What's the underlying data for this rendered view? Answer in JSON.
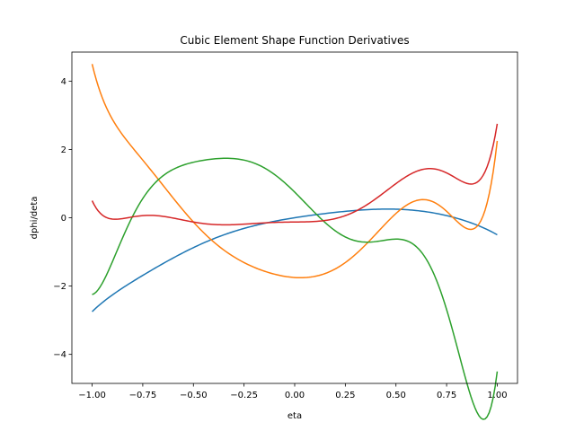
{
  "chart_data": {
    "type": "line",
    "title": "Cubic Element Shape Function Derivatives",
    "xlabel": "eta",
    "ylabel": "dphi/deta",
    "xlim": [
      -1.1,
      1.1
    ],
    "ylim": [
      -4.85,
      4.85
    ],
    "grid": false,
    "xticks": [
      -1.0,
      -0.75,
      -0.5,
      -0.25,
      0.0,
      0.25,
      0.5,
      0.75,
      1.0
    ],
    "xtick_labels": [
      "−1.00",
      "−0.75",
      "−0.50",
      "−0.25",
      "0.00",
      "0.25",
      "0.50",
      "0.75",
      "1.00"
    ],
    "yticks": [
      -4,
      -2,
      0,
      2,
      4
    ],
    "ytick_labels": [
      "−4",
      "−2",
      "0",
      "2",
      "4"
    ],
    "x": [
      -1.0,
      -0.75,
      -0.5,
      -0.25,
      0.0,
      0.25,
      0.5,
      0.75,
      1.0
    ],
    "series": [
      {
        "color": "#1f77b4",
        "values": [
          -2.75,
          -1.6875,
          -0.875,
          -0.3125,
          0.0,
          0.1875,
          0.25,
          0.0625,
          -0.5
        ]
      },
      {
        "color": "#ff7f0e",
        "values": [
          4.5,
          1.6875,
          -0.125,
          -1.3125,
          -1.75,
          -1.3125,
          0.125,
          0.1875,
          2.25
        ]
      },
      {
        "color": "#2ca02c",
        "values": [
          -2.25,
          0.5625,
          1.625,
          1.6875,
          0.75,
          -0.5625,
          -0.625,
          -2.6875,
          -4.5
        ]
      },
      {
        "color": "#d62728",
        "values": [
          0.5,
          0.0625,
          -0.125,
          -0.1875,
          -0.125,
          0.0625,
          1.0,
          1.3125,
          2.75
        ]
      }
    ]
  }
}
